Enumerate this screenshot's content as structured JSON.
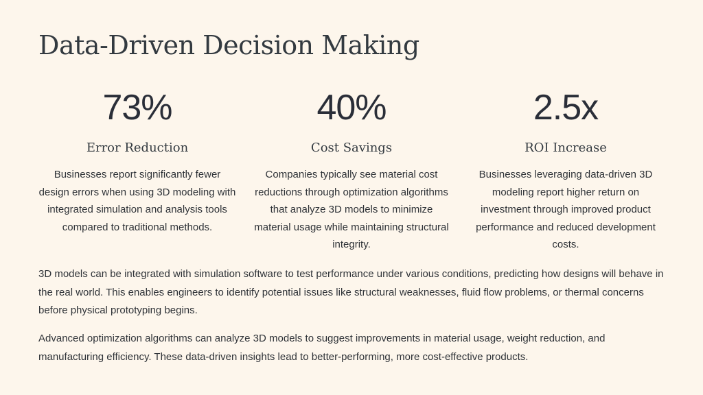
{
  "slide": {
    "title": "Data-Driven Decision Making",
    "stats": [
      {
        "value": "73%",
        "label": "Error Reduction",
        "description": "Businesses report significantly fewer design errors when using 3D modeling with integrated simulation and analysis tools compared to traditional methods."
      },
      {
        "value": "40%",
        "label": "Cost Savings",
        "description": "Companies typically see material cost reductions through optimization algorithms that analyze 3D models to minimize material usage while maintaining structural integrity."
      },
      {
        "value": "2.5x",
        "label": "ROI Increase",
        "description": "Businesses leveraging data-driven 3D modeling report higher return on investment through improved product performance and reduced development costs."
      }
    ],
    "paragraphs": [
      "3D models can be integrated with simulation software to test performance under various conditions, predicting how designs will behave in the real world. This enables engineers to identify potential issues like structural weaknesses, fluid flow problems, or thermal concerns before physical prototyping begins.",
      "Advanced optimization algorithms can analyze 3D models to suggest improvements in material usage, weight reduction, and manufacturing efficiency. These data-driven insights lead to better-performing, more cost-effective products."
    ]
  },
  "colors": {
    "background": "#fdf6ec",
    "text": "#2f3338",
    "heading": "#333a40"
  }
}
